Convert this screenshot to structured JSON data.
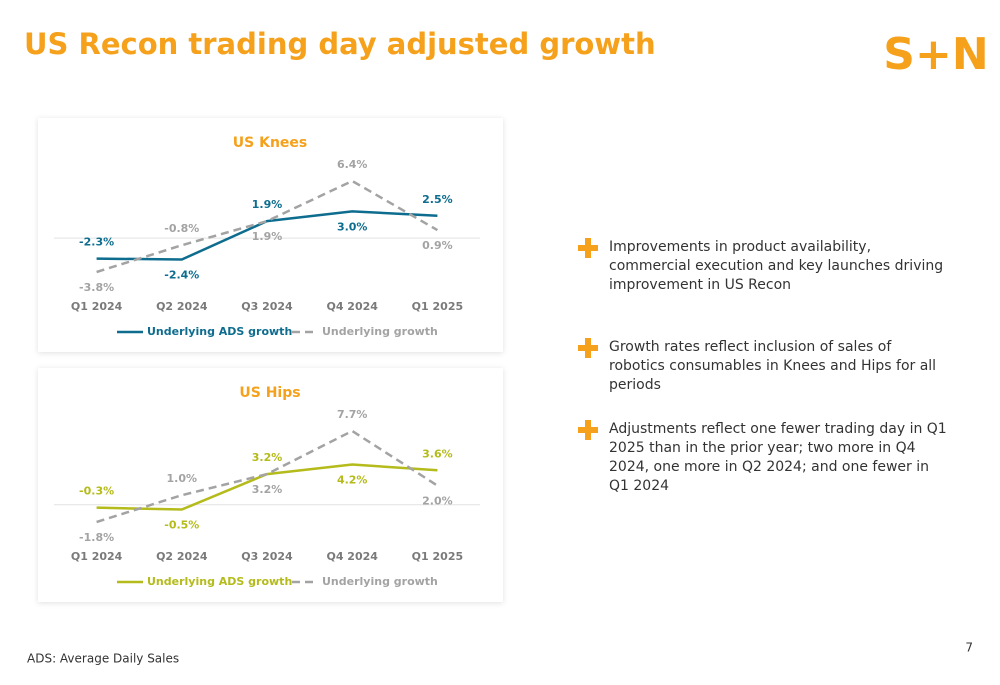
{
  "title": "US Recon trading day adjusted growth",
  "logo": "S+N",
  "bullets": [
    "Improvements in product availability, commercial execution and key launches driving improvement in US Recon",
    "Growth rates reflect inclusion of sales of robotics consumables in Knees and Hips for all periods",
    "Adjustments reflect one fewer trading day in Q1 2025 than in the prior year; two more in Q4 2024, one more in Q2 2024; and one fewer in Q1 2024"
  ],
  "footnote": "ADS: Average Daily Sales",
  "page_number": "7",
  "chart_data": [
    {
      "type": "line",
      "title": "US Knees",
      "categories": [
        "Q1 2024",
        "Q2 2024",
        "Q3 2024",
        "Q4 2024",
        "Q1 2025"
      ],
      "series": [
        {
          "name": "Underlying ADS growth",
          "color": "#0e6d8f",
          "dashed": false,
          "values": [
            -2.3,
            -2.4,
            1.9,
            3.0,
            2.5
          ],
          "value_labels": [
            "-2.3%",
            "-2.4%",
            "1.9%",
            "3.0%",
            "2.5%"
          ]
        },
        {
          "name": "Underlying growth",
          "color": "#a3a3a3",
          "dashed": true,
          "values": [
            -3.8,
            -0.8,
            1.9,
            6.4,
            0.9
          ],
          "value_labels": [
            "-3.8%",
            "-0.8%",
            "1.9%",
            "6.4%",
            "0.9%"
          ]
        }
      ],
      "legend": "bottom"
    },
    {
      "type": "line",
      "title": "US Hips",
      "categories": [
        "Q1 2024",
        "Q2 2024",
        "Q3 2024",
        "Q4 2024",
        "Q1 2025"
      ],
      "series": [
        {
          "name": "Underlying ADS growth",
          "color": "#b4bb1a",
          "dashed": false,
          "values": [
            -0.3,
            -0.5,
            3.2,
            4.2,
            3.6
          ],
          "value_labels": [
            "-0.3%",
            "-0.5%",
            "3.2%",
            "4.2%",
            "3.6%"
          ]
        },
        {
          "name": "Underlying growth",
          "color": "#a3a3a3",
          "dashed": true,
          "values": [
            -1.8,
            1.0,
            3.2,
            7.7,
            2.0
          ],
          "value_labels": [
            "-1.8%",
            "1.0%",
            "3.2%",
            "7.7%",
            "2.0%"
          ]
        }
      ],
      "legend": "bottom"
    }
  ]
}
